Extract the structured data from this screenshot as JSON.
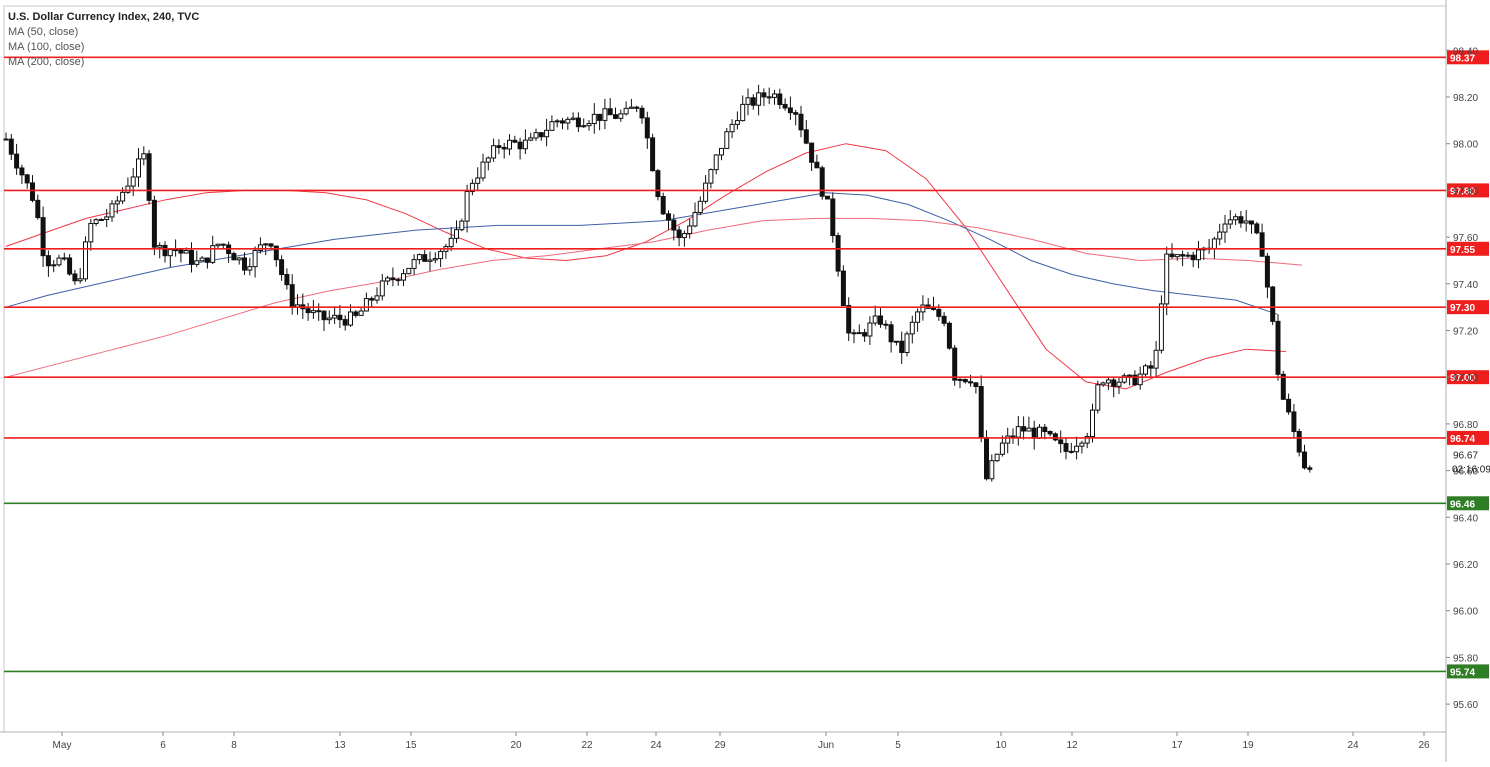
{
  "chart_data": {
    "type": "candlestick",
    "title": "U.S. Dollar Currency Index, 240, TVC",
    "indicators": [
      "MA (50, close)",
      "MA (100, close)",
      "MA (200, close)"
    ],
    "y_ticks": [
      "98.40",
      "98.20",
      "98.00",
      "97.80",
      "97.60",
      "97.40",
      "97.20",
      "97.00",
      "96.80",
      "96.60",
      "96.40",
      "96.20",
      "96.00",
      "95.80",
      "95.60"
    ],
    "ylim": [
      95.52,
      98.62
    ],
    "x_ticks": [
      "May",
      "6",
      "8",
      "13",
      "15",
      "20",
      "22",
      "24",
      "29",
      "Jun",
      "5",
      "10",
      "12",
      "17",
      "19",
      "24",
      "26"
    ],
    "current_price": "96.67",
    "countdown": "02:16:09",
    "resistance_levels": [
      {
        "label": "98.37",
        "value": 98.37
      },
      {
        "label": "97.80",
        "value": 97.8
      },
      {
        "label": "97.55",
        "value": 97.55
      },
      {
        "label": "97.30",
        "value": 97.3
      },
      {
        "label": "97.00",
        "value": 97.0
      },
      {
        "label": "96.74",
        "value": 96.74
      }
    ],
    "support_levels": [
      {
        "label": "96.46",
        "value": 96.46
      },
      {
        "label": "95.74",
        "value": 95.74
      }
    ],
    "series": [
      {
        "name": "MA (50, close)",
        "values": [
          97.56,
          97.62,
          97.68,
          97.72,
          97.76,
          97.79,
          97.8,
          97.8,
          97.79,
          97.76,
          97.7,
          97.62,
          97.55,
          97.51,
          97.5,
          97.52,
          97.58,
          97.67,
          97.78,
          97.88,
          97.96,
          98.0,
          97.97,
          97.85,
          97.64,
          97.38,
          97.12,
          96.98,
          96.95,
          97.02,
          97.08,
          97.12,
          97.11
        ]
      },
      {
        "name": "MA (100, close)",
        "values": [
          97.3,
          97.35,
          97.39,
          97.43,
          97.47,
          97.5,
          97.53,
          97.56,
          97.59,
          97.61,
          97.63,
          97.64,
          97.65,
          97.65,
          97.65,
          97.66,
          97.67,
          97.7,
          97.73,
          97.76,
          97.79,
          97.78,
          97.74,
          97.67,
          97.59,
          97.5,
          97.44,
          97.4,
          97.37,
          97.35,
          97.33,
          97.27
        ]
      },
      {
        "name": "MA (200, close)",
        "values": [
          97.0,
          97.06,
          97.12,
          97.18,
          97.25,
          97.32,
          97.37,
          97.41,
          97.46,
          97.5,
          97.52,
          97.55,
          97.58,
          97.63,
          97.67,
          97.68,
          97.68,
          97.67,
          97.64,
          97.59,
          97.53,
          97.5,
          97.51,
          97.5,
          97.48
        ]
      }
    ]
  }
}
